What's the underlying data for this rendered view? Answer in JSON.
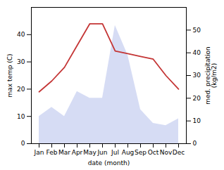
{
  "chart_data": {
    "type": "line",
    "xlabel": "date (month)",
    "ylabel": "max temp (C)",
    "y2label": "med. precipitation\n(kg/m2)",
    "categories": [
      "Jan",
      "Feb",
      "Mar",
      "Apr",
      "May",
      "Jun",
      "Jul",
      "Aug",
      "Sep",
      "Oct",
      "Nov",
      "Dec"
    ],
    "series": [
      {
        "type": "area",
        "axis": "y2",
        "color": "#c8d0f0",
        "values": [
          12,
          16,
          12,
          23,
          20,
          20,
          52,
          39,
          15,
          9,
          8,
          11
        ]
      },
      {
        "type": "line",
        "color": "#c43535",
        "values": [
          19,
          23,
          28,
          36,
          44,
          44,
          34,
          33,
          32,
          31,
          25,
          20
        ]
      }
    ],
    "ylim": [
      0,
      50
    ],
    "yticks": [
      0,
      10,
      20,
      30,
      40
    ],
    "y2lim": [
      0,
      60
    ],
    "y2ticks": [
      0,
      10,
      20,
      30,
      40,
      50
    ],
    "grid": false
  }
}
